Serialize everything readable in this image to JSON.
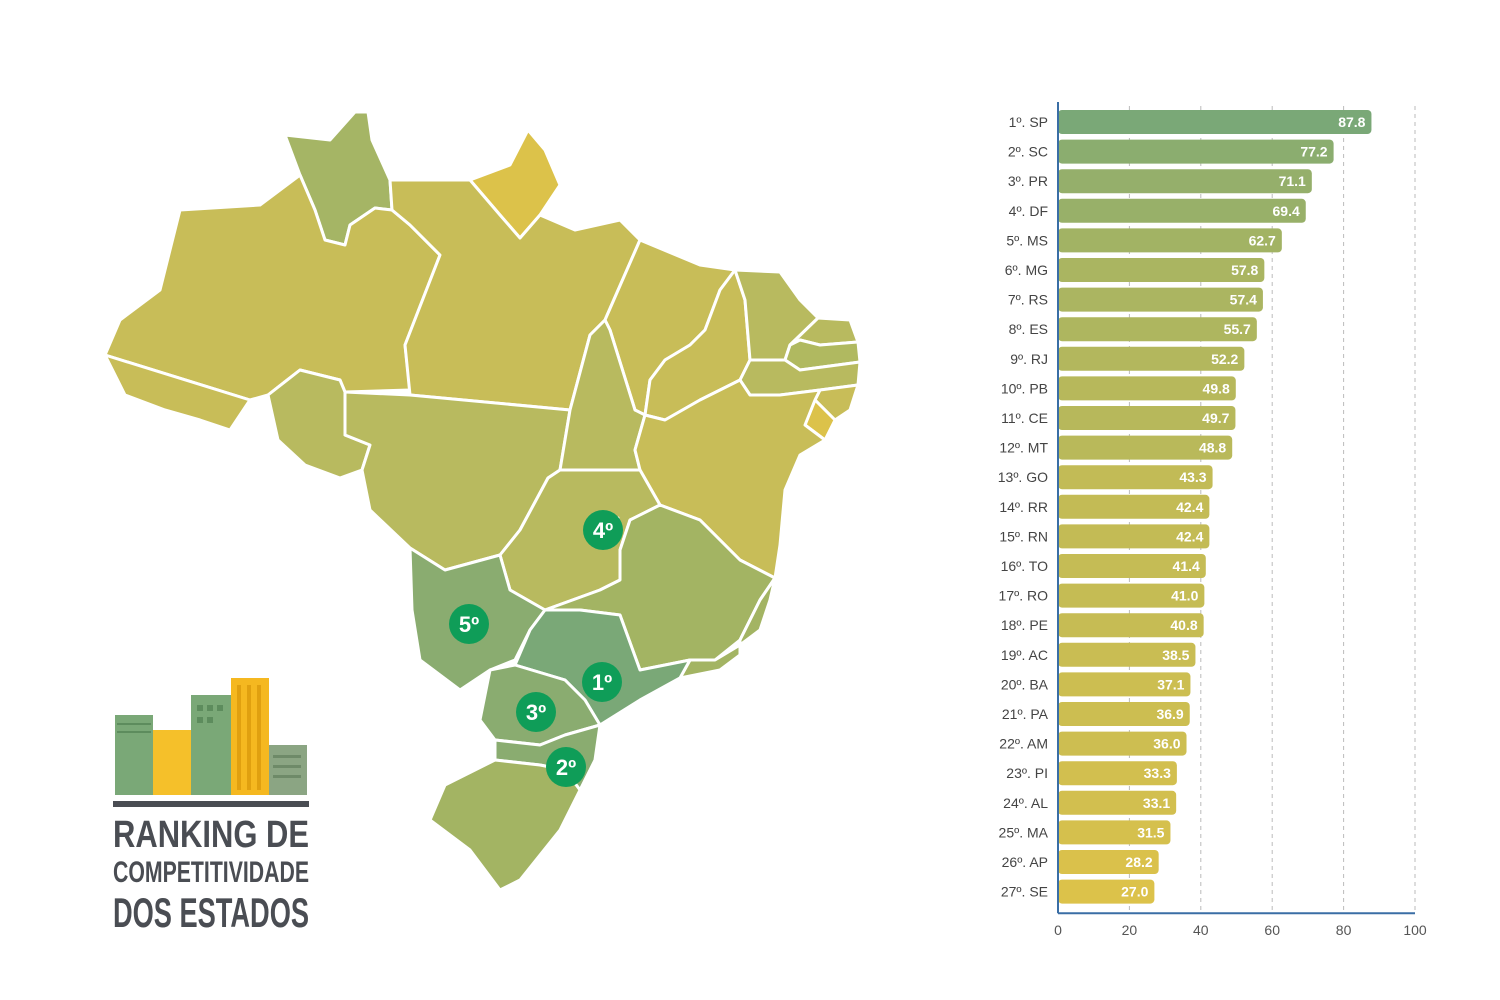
{
  "logo": {
    "line1": "RANKING DE",
    "line2": "COMPETITIVIDADE",
    "line3": "DOS ESTADOS"
  },
  "map": {
    "markers": [
      {
        "state": "SP",
        "label": "1º"
      },
      {
        "state": "SC",
        "label": "2º"
      },
      {
        "state": "PR",
        "label": "3º"
      },
      {
        "state": "DF",
        "label": "4º"
      },
      {
        "state": "MS",
        "label": "5º"
      }
    ],
    "colors": {
      "top": "#7aa877",
      "high": "#9eb46a",
      "mid": "#b8ba5f",
      "low": "#c8bd58",
      "lowest": "#d9c250",
      "marker": "#0f9d58"
    }
  },
  "chart_data": {
    "type": "bar",
    "orientation": "horizontal",
    "categories": [
      "1º. SP",
      "2º. SC",
      "3º. PR",
      "4º. DF",
      "5º. MS",
      "6º. MG",
      "7º. RS",
      "8º. ES",
      "9º. RJ",
      "10º. PB",
      "11º. CE",
      "12º. MT",
      "13º. GO",
      "14º. RR",
      "15º. RN",
      "16º. TO",
      "17º. RO",
      "18º. PE",
      "19º. AC",
      "20º. BA",
      "21º. PA",
      "22º. AM",
      "23º. PI",
      "24º. AL",
      "25º. MA",
      "26º. AP",
      "27º. SE"
    ],
    "values": [
      87.8,
      77.2,
      71.1,
      69.4,
      62.7,
      57.8,
      57.4,
      55.7,
      52.2,
      49.8,
      49.7,
      48.8,
      43.3,
      42.4,
      42.4,
      41.4,
      41.0,
      40.8,
      38.5,
      37.1,
      36.9,
      36.0,
      33.3,
      33.1,
      31.5,
      28.2,
      27.0
    ],
    "value_labels": [
      "87.8",
      "77.2",
      "71.1",
      "69.4",
      "62.7",
      "57.8",
      "57.4",
      "55.7",
      "52.2",
      "49.8",
      "49.7",
      "48.8",
      "43.3",
      "42.4",
      "42.4",
      "41.4",
      "41.0",
      "40.8",
      "38.5",
      "37.1",
      "36.9",
      "36.0",
      "33.3",
      "33.1",
      "31.5",
      "28.2",
      "27.0"
    ],
    "xlim": [
      0,
      100
    ],
    "xticks": [
      "0",
      "20",
      "40",
      "60",
      "80",
      "100"
    ],
    "grid": "vertical dashed",
    "colors": {
      "high": "#7aa877",
      "low": "#dcc24a",
      "axis": "#3a6ea5",
      "grid": "#bbbbbb"
    }
  }
}
